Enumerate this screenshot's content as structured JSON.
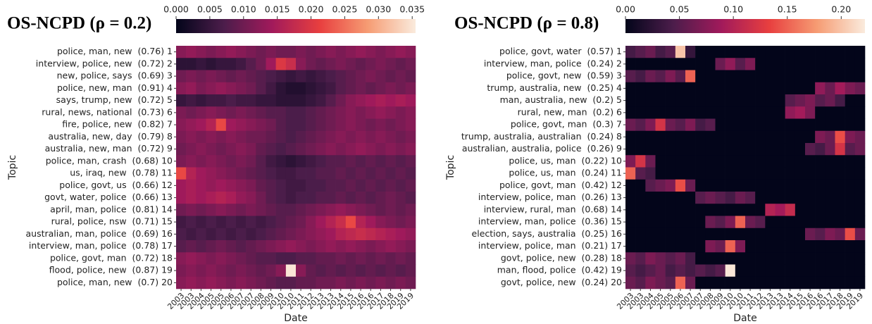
{
  "chart_data": [
    {
      "type": "heatmap",
      "title": "OS-NCPD (ρ = 0.2)",
      "x_label": "Date",
      "y_label": "Topic",
      "categories": [
        "2003",
        "2003",
        "2004",
        "2005",
        "2005",
        "2006",
        "2007",
        "2007",
        "2008",
        "2009",
        "2010",
        "2010",
        "2011",
        "2012",
        "2013",
        "2013",
        "2014",
        "2015",
        "2016",
        "2016",
        "2017",
        "2018",
        "2019",
        "2019"
      ],
      "rows": [
        "police, man, new  (0.76) 1",
        "interview, police, new  (0.72) 2",
        "new, police, says  (0.69) 3",
        "police, new, man  (0.91) 4",
        "says, trump, new  (0.72) 5",
        "rural, news, national  (0.73) 6",
        "fire, police, new  (0.82) 7",
        "australia, new, day  (0.79) 8",
        "australia, new, man  (0.72) 9",
        "police, man, crash  (0.68) 10",
        "us, iraq, new  (0.78) 11",
        "police, govt, us  (0.66) 12",
        "govt, water, police  (0.66) 13",
        "april, man, police  (0.81) 14",
        "rural, police, nsw  (0.71) 15",
        "australian, man, police  (0.69) 16",
        "interview, man, police  (0.78) 17",
        "police, govt, man  (0.72) 18",
        "flood, police, new  (0.87) 19",
        "police, man, new  (0.7) 20"
      ],
      "values": [
        [
          0.012,
          0.013,
          0.012,
          0.011,
          0.012,
          0.013,
          0.012,
          0.011,
          0.01,
          0.011,
          0.01,
          0.01,
          0.011,
          0.01,
          0.011,
          0.012,
          0.011,
          0.012,
          0.013,
          0.012,
          0.011,
          0.012,
          0.013,
          0.012
        ],
        [
          0.004,
          0.004,
          0.005,
          0.004,
          0.005,
          0.005,
          0.006,
          0.008,
          0.01,
          0.014,
          0.02,
          0.018,
          0.012,
          0.01,
          0.009,
          0.01,
          0.011,
          0.01,
          0.009,
          0.01,
          0.011,
          0.01,
          0.009,
          0.01
        ],
        [
          0.01,
          0.011,
          0.01,
          0.011,
          0.01,
          0.009,
          0.01,
          0.009,
          0.008,
          0.007,
          0.006,
          0.005,
          0.006,
          0.005,
          0.006,
          0.007,
          0.008,
          0.009,
          0.01,
          0.011,
          0.01,
          0.009,
          0.01,
          0.009
        ],
        [
          0.012,
          0.013,
          0.011,
          0.012,
          0.013,
          0.012,
          0.011,
          0.01,
          0.008,
          0.006,
          0.004,
          0.003,
          0.003,
          0.004,
          0.005,
          0.006,
          0.008,
          0.009,
          0.01,
          0.009,
          0.01,
          0.011,
          0.01,
          0.011
        ],
        [
          0.005,
          0.006,
          0.005,
          0.006,
          0.006,
          0.007,
          0.006,
          0.006,
          0.005,
          0.005,
          0.004,
          0.004,
          0.004,
          0.005,
          0.006,
          0.008,
          0.01,
          0.012,
          0.013,
          0.014,
          0.015,
          0.014,
          0.015,
          0.014
        ],
        [
          0.011,
          0.01,
          0.011,
          0.012,
          0.011,
          0.01,
          0.011,
          0.01,
          0.009,
          0.008,
          0.008,
          0.007,
          0.007,
          0.008,
          0.009,
          0.01,
          0.011,
          0.012,
          0.011,
          0.012,
          0.013,
          0.012,
          0.011,
          0.012
        ],
        [
          0.012,
          0.013,
          0.014,
          0.016,
          0.022,
          0.014,
          0.013,
          0.012,
          0.011,
          0.01,
          0.008,
          0.007,
          0.007,
          0.008,
          0.009,
          0.01,
          0.011,
          0.012,
          0.011,
          0.01,
          0.011,
          0.01,
          0.011,
          0.012
        ],
        [
          0.011,
          0.012,
          0.011,
          0.012,
          0.011,
          0.012,
          0.011,
          0.01,
          0.01,
          0.009,
          0.008,
          0.007,
          0.008,
          0.009,
          0.01,
          0.011,
          0.012,
          0.011,
          0.012,
          0.011,
          0.012,
          0.011,
          0.01,
          0.011
        ],
        [
          0.01,
          0.011,
          0.012,
          0.011,
          0.01,
          0.011,
          0.012,
          0.011,
          0.009,
          0.008,
          0.007,
          0.008,
          0.009,
          0.01,
          0.011,
          0.012,
          0.011,
          0.012,
          0.013,
          0.012,
          0.011,
          0.012,
          0.011,
          0.012
        ],
        [
          0.011,
          0.012,
          0.011,
          0.012,
          0.011,
          0.01,
          0.011,
          0.01,
          0.008,
          0.006,
          0.005,
          0.004,
          0.005,
          0.006,
          0.007,
          0.008,
          0.008,
          0.009,
          0.008,
          0.009,
          0.008,
          0.009,
          0.008,
          0.009
        ],
        [
          0.022,
          0.016,
          0.014,
          0.013,
          0.012,
          0.011,
          0.01,
          0.009,
          0.008,
          0.007,
          0.006,
          0.006,
          0.007,
          0.007,
          0.008,
          0.008,
          0.009,
          0.008,
          0.009,
          0.008,
          0.009,
          0.008,
          0.009,
          0.008
        ],
        [
          0.014,
          0.015,
          0.014,
          0.013,
          0.014,
          0.013,
          0.012,
          0.011,
          0.009,
          0.008,
          0.007,
          0.006,
          0.006,
          0.007,
          0.007,
          0.008,
          0.008,
          0.009,
          0.008,
          0.009,
          0.008,
          0.009,
          0.008,
          0.009
        ],
        [
          0.014,
          0.015,
          0.014,
          0.015,
          0.016,
          0.015,
          0.013,
          0.012,
          0.01,
          0.008,
          0.007,
          0.006,
          0.007,
          0.007,
          0.008,
          0.008,
          0.009,
          0.008,
          0.009,
          0.008,
          0.009,
          0.01,
          0.009,
          0.008
        ],
        [
          0.01,
          0.011,
          0.01,
          0.011,
          0.012,
          0.011,
          0.01,
          0.011,
          0.01,
          0.009,
          0.008,
          0.008,
          0.009,
          0.01,
          0.011,
          0.012,
          0.013,
          0.012,
          0.011,
          0.01,
          0.009,
          0.01,
          0.009,
          0.01
        ],
        [
          0.006,
          0.007,
          0.006,
          0.007,
          0.006,
          0.007,
          0.006,
          0.007,
          0.006,
          0.007,
          0.008,
          0.009,
          0.01,
          0.012,
          0.014,
          0.016,
          0.018,
          0.022,
          0.016,
          0.014,
          0.012,
          0.011,
          0.01,
          0.011
        ],
        [
          0.007,
          0.006,
          0.007,
          0.006,
          0.007,
          0.006,
          0.007,
          0.006,
          0.007,
          0.008,
          0.009,
          0.01,
          0.011,
          0.012,
          0.013,
          0.014,
          0.016,
          0.017,
          0.018,
          0.017,
          0.016,
          0.015,
          0.014,
          0.013
        ],
        [
          0.008,
          0.009,
          0.008,
          0.009,
          0.01,
          0.009,
          0.008,
          0.009,
          0.01,
          0.011,
          0.012,
          0.013,
          0.012,
          0.011,
          0.012,
          0.013,
          0.012,
          0.013,
          0.012,
          0.011,
          0.012,
          0.013,
          0.012,
          0.011
        ],
        [
          0.012,
          0.013,
          0.012,
          0.011,
          0.012,
          0.011,
          0.01,
          0.009,
          0.008,
          0.008,
          0.007,
          0.007,
          0.008,
          0.008,
          0.009,
          0.009,
          0.01,
          0.009,
          0.01,
          0.009,
          0.01,
          0.009,
          0.01,
          0.009
        ],
        [
          0.011,
          0.012,
          0.011,
          0.012,
          0.011,
          0.01,
          0.011,
          0.01,
          0.009,
          0.01,
          0.012,
          0.035,
          0.012,
          0.009,
          0.008,
          0.009,
          0.008,
          0.009,
          0.008,
          0.009,
          0.008,
          0.009,
          0.008,
          0.009
        ],
        [
          0.012,
          0.013,
          0.012,
          0.013,
          0.012,
          0.011,
          0.012,
          0.011,
          0.01,
          0.009,
          0.008,
          0.008,
          0.009,
          0.009,
          0.01,
          0.01,
          0.011,
          0.01,
          0.011,
          0.01,
          0.011,
          0.01,
          0.011,
          0.01
        ]
      ],
      "zlim": [
        0,
        0.0355
      ],
      "zticks": [
        {
          "value": 0,
          "label": "0.000"
        },
        {
          "value": 0.005,
          "label": "0.005"
        },
        {
          "value": 0.01,
          "label": "0.010"
        },
        {
          "value": 0.015,
          "label": "0.015"
        },
        {
          "value": 0.02,
          "label": "0.020"
        },
        {
          "value": 0.025,
          "label": "0.025"
        },
        {
          "value": 0.03,
          "label": "0.030"
        },
        {
          "value": 0.035,
          "label": "0.035"
        }
      ],
      "colormap": [
        "#03051a",
        "#4c1d4b",
        "#a11a5b",
        "#e83f3f",
        "#f69c73",
        "#faebdd"
      ]
    },
    {
      "type": "heatmap",
      "title": "OS-NCPD (ρ = 0.8)",
      "x_label": "Date",
      "y_label": "Topic",
      "categories": [
        "2003",
        "2003",
        "2004",
        "2005",
        "2005",
        "2006",
        "2007",
        "2007",
        "2008",
        "2009",
        "2010",
        "2010",
        "2011",
        "2012",
        "2013",
        "2013",
        "2014",
        "2015",
        "2016",
        "2016",
        "2017",
        "2018",
        "2019",
        "2019"
      ],
      "rows": [
        "police, govt, water  (0.57) 1",
        "interview, man, police  (0.24) 2",
        "police, govt, new  (0.59) 3",
        "trump, australia, new  (0.25) 4",
        "man, australia, new  (0.2) 5",
        "rural, new, man  (0.2) 6",
        "police, govt, man  (0.3) 7",
        "trump, australia, australian  (0.24) 8",
        "australian, australia, police  (0.26) 9",
        "police, us, man  (0.22) 10",
        "police, us, man  (0.24) 11",
        "police, govt, man  (0.42) 12",
        "interview, police, man  (0.26) 13",
        "interview, rural, man  (0.68) 14",
        "interview, man, police  (0.36) 15",
        "election, says, australia  (0.25) 16",
        "interview, police, man  (0.21) 17",
        "govt, police, new  (0.28) 18",
        "man, flood, police  (0.42) 19",
        "govt, police, new  (0.24) 20"
      ],
      "values": [
        [
          0.04,
          0.05,
          0.06,
          0.04,
          0.05,
          0.2,
          0.03,
          0,
          0,
          0,
          0,
          0,
          0,
          0,
          0,
          0,
          0,
          0,
          0,
          0,
          0,
          0,
          0,
          0
        ],
        [
          0,
          0,
          0,
          0,
          0,
          0,
          0,
          0,
          0,
          0.06,
          0.08,
          0.05,
          0.07,
          0,
          0,
          0,
          0,
          0,
          0,
          0,
          0,
          0,
          0,
          0
        ],
        [
          0.05,
          0.04,
          0.06,
          0.05,
          0.07,
          0.05,
          0.15,
          0,
          0,
          0,
          0,
          0,
          0,
          0,
          0,
          0,
          0,
          0,
          0,
          0,
          0,
          0,
          0,
          0
        ],
        [
          0,
          0,
          0,
          0,
          0,
          0,
          0,
          0,
          0,
          0,
          0,
          0,
          0,
          0,
          0,
          0,
          0,
          0,
          0,
          0.08,
          0.06,
          0.09,
          0.07,
          0.06
        ],
        [
          0,
          0,
          0,
          0,
          0,
          0,
          0,
          0,
          0,
          0,
          0,
          0,
          0,
          0,
          0,
          0,
          0.05,
          0.06,
          0.07,
          0.05,
          0.06,
          0.04,
          0,
          0
        ],
        [
          0,
          0,
          0,
          0,
          0,
          0,
          0,
          0,
          0,
          0,
          0,
          0,
          0,
          0,
          0,
          0,
          0.08,
          0.09,
          0.07,
          0,
          0,
          0,
          0,
          0
        ],
        [
          0.06,
          0.05,
          0.07,
          0.12,
          0.06,
          0.05,
          0.07,
          0.04,
          0.05,
          0,
          0,
          0,
          0,
          0,
          0,
          0,
          0,
          0,
          0,
          0,
          0,
          0,
          0,
          0
        ],
        [
          0,
          0,
          0,
          0,
          0,
          0,
          0,
          0,
          0,
          0,
          0,
          0,
          0,
          0,
          0,
          0,
          0,
          0,
          0,
          0.07,
          0.06,
          0.14,
          0.07,
          0.06
        ],
        [
          0,
          0,
          0,
          0,
          0,
          0,
          0,
          0,
          0,
          0,
          0,
          0,
          0,
          0,
          0,
          0,
          0,
          0,
          0.05,
          0.04,
          0.06,
          0.12,
          0.05,
          0.06
        ],
        [
          0.07,
          0.12,
          0.06,
          0,
          0,
          0,
          0,
          0,
          0,
          0,
          0,
          0,
          0,
          0,
          0,
          0,
          0,
          0,
          0,
          0,
          0,
          0,
          0,
          0
        ],
        [
          0.15,
          0.05,
          0.04,
          0,
          0,
          0,
          0,
          0,
          0,
          0,
          0,
          0,
          0,
          0,
          0,
          0,
          0,
          0,
          0,
          0,
          0,
          0,
          0,
          0
        ],
        [
          0,
          0,
          0.05,
          0.06,
          0.07,
          0.14,
          0.06,
          0,
          0,
          0,
          0,
          0,
          0,
          0,
          0,
          0,
          0,
          0,
          0,
          0,
          0,
          0,
          0,
          0
        ],
        [
          0,
          0,
          0,
          0,
          0,
          0,
          0,
          0.05,
          0.06,
          0.05,
          0.04,
          0.06,
          0.05,
          0,
          0,
          0,
          0,
          0,
          0,
          0,
          0,
          0,
          0,
          0
        ],
        [
          0,
          0,
          0,
          0,
          0,
          0,
          0,
          0,
          0,
          0,
          0,
          0,
          0,
          0,
          0.1,
          0.09,
          0.11,
          0,
          0,
          0,
          0,
          0,
          0,
          0
        ],
        [
          0,
          0,
          0,
          0,
          0,
          0,
          0,
          0,
          0.06,
          0.05,
          0.07,
          0.15,
          0.06,
          0.05,
          0,
          0,
          0,
          0,
          0,
          0,
          0,
          0,
          0,
          0
        ],
        [
          0,
          0,
          0,
          0,
          0,
          0,
          0,
          0,
          0,
          0,
          0,
          0,
          0,
          0,
          0,
          0,
          0,
          0,
          0.06,
          0.05,
          0.07,
          0.06,
          0.14,
          0.06
        ],
        [
          0,
          0,
          0,
          0,
          0,
          0,
          0,
          0,
          0.07,
          0.06,
          0.15,
          0.07,
          0,
          0,
          0,
          0,
          0,
          0,
          0,
          0,
          0,
          0,
          0,
          0
        ],
        [
          0.06,
          0.05,
          0.07,
          0.06,
          0.05,
          0.06,
          0.04,
          0,
          0,
          0,
          0,
          0,
          0,
          0,
          0,
          0,
          0,
          0,
          0,
          0,
          0,
          0,
          0,
          0
        ],
        [
          0.05,
          0.04,
          0.05,
          0.06,
          0.04,
          0.05,
          0.04,
          0.05,
          0.04,
          0.05,
          0.22,
          0,
          0,
          0,
          0,
          0,
          0,
          0,
          0,
          0,
          0,
          0,
          0,
          0
        ],
        [
          0.06,
          0.05,
          0.07,
          0.06,
          0.05,
          0.15,
          0.06,
          0,
          0,
          0,
          0,
          0,
          0,
          0,
          0,
          0,
          0,
          0,
          0,
          0,
          0,
          0,
          0,
          0
        ]
      ],
      "zlim": [
        0,
        0.222
      ],
      "zticks": [
        {
          "value": 0,
          "label": "0.00"
        },
        {
          "value": 0.05,
          "label": "0.05"
        },
        {
          "value": 0.1,
          "label": "0.10"
        },
        {
          "value": 0.15,
          "label": "0.15"
        },
        {
          "value": 0.2,
          "label": "0.20"
        }
      ],
      "colormap": [
        "#03051a",
        "#4c1d4b",
        "#a11a5b",
        "#e83f3f",
        "#f69c73",
        "#faebdd"
      ]
    }
  ]
}
